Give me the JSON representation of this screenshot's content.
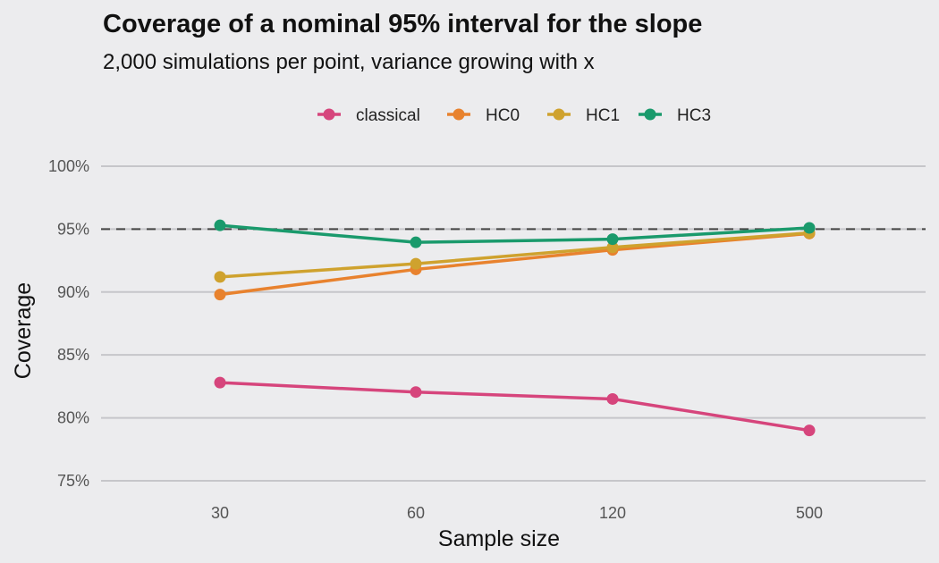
{
  "chart_data": {
    "type": "line",
    "title": "Coverage of a nominal 95% interval for the slope",
    "subtitle": "2,000 simulations per point, variance growing with x",
    "xlabel": "Sample size",
    "ylabel": "Coverage",
    "categories": [
      "30",
      "60",
      "120",
      "500"
    ],
    "ylim": [
      0.745,
      1.0
    ],
    "yticks": [
      0.75,
      0.8,
      0.85,
      0.9,
      0.95,
      1.0
    ],
    "ytick_labels": [
      "75%",
      "80%",
      "85%",
      "90%",
      "95%",
      "100%"
    ],
    "reference_line": {
      "y": 0.95,
      "style": "dashed"
    },
    "legend_position": "top",
    "grid": true,
    "series": [
      {
        "name": "classical",
        "color": "#d6457c",
        "values": [
          0.828,
          0.8205,
          0.815,
          0.79
        ]
      },
      {
        "name": "HC0",
        "color": "#e8822e",
        "values": [
          0.898,
          0.918,
          0.9335,
          0.9465
        ]
      },
      {
        "name": "HC1",
        "color": "#cfa22e",
        "values": [
          0.912,
          0.9225,
          0.9355,
          0.947
        ]
      },
      {
        "name": "HC3",
        "color": "#1a9a6c",
        "values": [
          0.953,
          0.9395,
          0.942,
          0.951
        ]
      }
    ]
  }
}
